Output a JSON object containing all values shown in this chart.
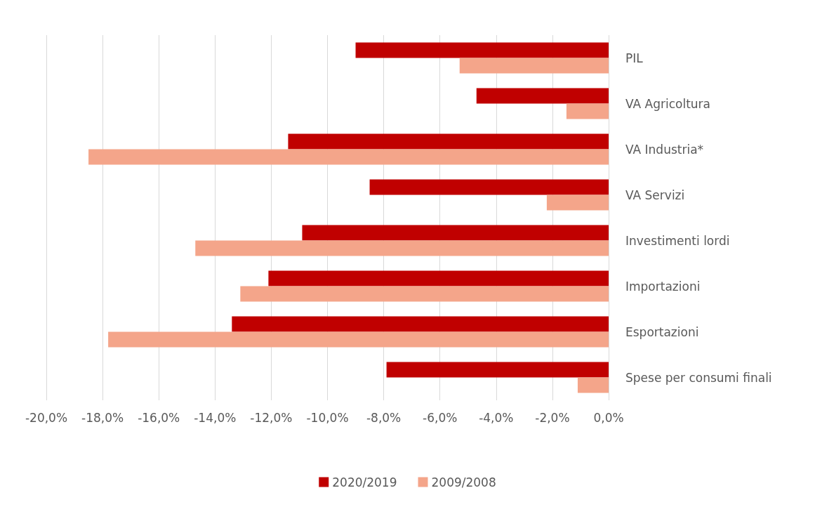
{
  "chart_data": {
    "type": "bar",
    "orientation": "horizontal",
    "categories": [
      "PIL",
      "VA Agricoltura",
      "VA Industria*",
      "VA Servizi",
      "Investimenti lordi",
      "Importazioni",
      "Esportazioni",
      "Spese per consumi finali"
    ],
    "series": [
      {
        "name": "2020/2019",
        "color": "#c00000",
        "values": [
          -9.0,
          -4.7,
          -11.4,
          -8.5,
          -10.9,
          -12.1,
          -13.4,
          -7.9
        ]
      },
      {
        "name": "2009/2008",
        "color": "#f4a58a",
        "values": [
          -5.3,
          -1.5,
          -18.5,
          -2.2,
          -14.7,
          -13.1,
          -17.8,
          -1.1
        ]
      }
    ],
    "xlim": [
      -20,
      0
    ],
    "xticks": [
      {
        "value": -20,
        "label": "-20,0%"
      },
      {
        "value": -18,
        "label": "-18,0%"
      },
      {
        "value": -16,
        "label": "-16,0%"
      },
      {
        "value": -14,
        "label": "-14,0%"
      },
      {
        "value": -12,
        "label": "-12,0%"
      },
      {
        "value": -10,
        "label": "-10,0%"
      },
      {
        "value": -8,
        "label": "-8,0%"
      },
      {
        "value": -6,
        "label": "-6,0%"
      },
      {
        "value": -4,
        "label": "-4,0%"
      },
      {
        "value": -2,
        "label": "-2,0%"
      },
      {
        "value": 0,
        "label": "0,0%"
      }
    ],
    "grid": "x",
    "legend": "bottom"
  }
}
